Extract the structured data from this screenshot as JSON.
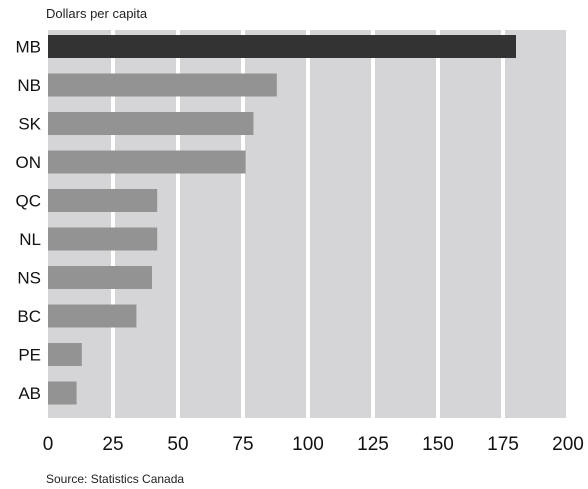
{
  "header": {
    "subtitle": "Dollars per capita"
  },
  "footer": {
    "source": "Source:  Statistics Canada"
  },
  "colors": {
    "plot_background": "#d5d5d7",
    "gridline": "#ffffff",
    "bar_default": "#939393",
    "bar_highlight": "#333333"
  },
  "chart_data": {
    "type": "bar",
    "orientation": "horizontal",
    "categories": [
      "MB",
      "NB",
      "SK",
      "ON",
      "QC",
      "NL",
      "NS",
      "BC",
      "PE",
      "AB"
    ],
    "values": [
      180,
      88,
      79,
      76,
      42,
      42,
      40,
      34,
      13,
      11
    ],
    "highlight": "MB",
    "subtitle": "Dollars per capita",
    "xlim": [
      0,
      200
    ],
    "xticks": [
      0,
      25,
      50,
      75,
      100,
      125,
      150,
      175,
      200
    ],
    "grid": "vertical"
  }
}
